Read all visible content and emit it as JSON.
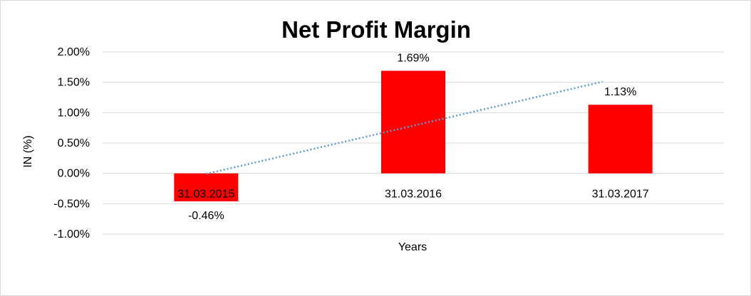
{
  "chart_data": {
    "type": "bar",
    "title": "Net Profit Margin",
    "xlabel": "Years",
    "ylabel": "IN (%)",
    "categories": [
      "31.03.2015",
      "31.03.2016",
      "31.03.2017"
    ],
    "series": [
      {
        "values": [
          -0.46,
          1.69,
          1.13
        ],
        "data_labels": [
          "-0.46%",
          "1.69%",
          "1.13%"
        ]
      }
    ],
    "trendline": {
      "type": "linear",
      "style": "dotted",
      "color": "#5b9bd5"
    },
    "ylim": [
      -1.0,
      2.0
    ],
    "yticks": [
      "2.00%",
      "1.50%",
      "1.00%",
      "0.50%",
      "0.00%",
      "-0.50%",
      "-1.00%"
    ],
    "ytick_values": [
      2.0,
      1.5,
      1.0,
      0.5,
      0.0,
      -0.5,
      -1.0
    ],
    "bar_color": "#ff0000",
    "grid": true,
    "legend": "none"
  }
}
